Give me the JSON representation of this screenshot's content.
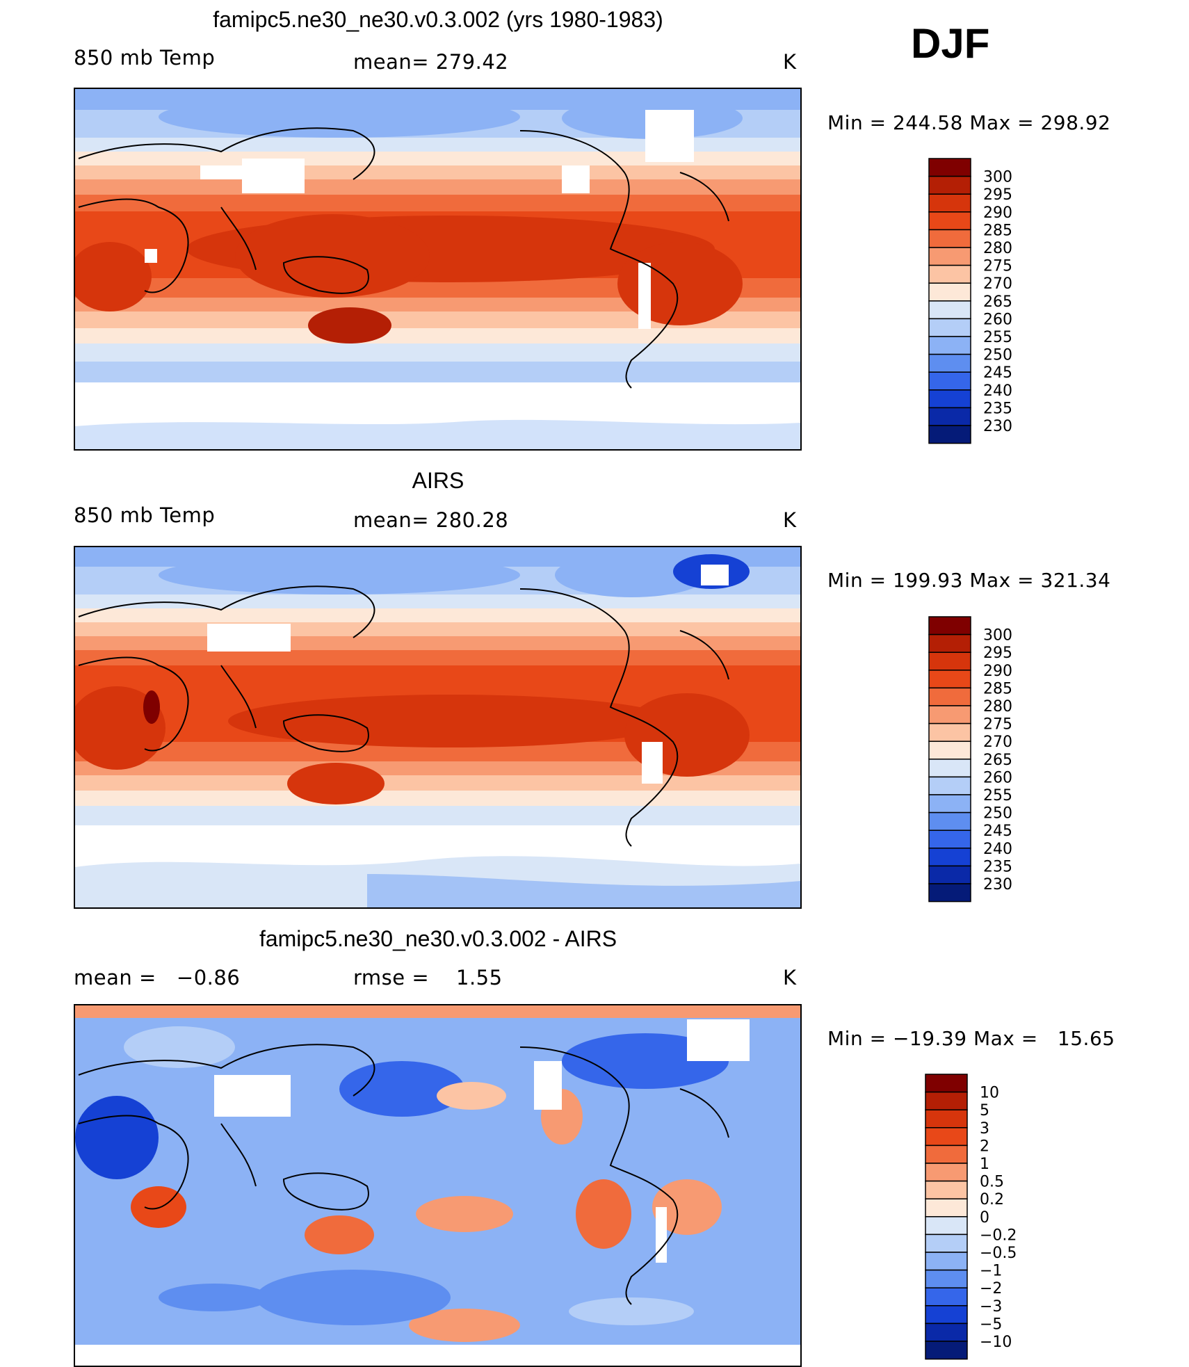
{
  "page": {
    "season": "DJF",
    "units": "K"
  },
  "chart_data": [
    {
      "type": "heatmap",
      "title": "famipc5.ne30_ne30.v0.3.002 (yrs 1980-1983)",
      "left_label": "850 mb Temp",
      "center_label": "mean= 279.42",
      "mean": 279.42,
      "units": "K",
      "min_max_label": "Min = 244.58 Max = 298.92",
      "min": 244.58,
      "max": 298.92,
      "colorbar_levels": [
        "300",
        "295",
        "290",
        "285",
        "280",
        "275",
        "270",
        "265",
        "260",
        "255",
        "250",
        "245",
        "240",
        "235",
        "230"
      ],
      "colorbar_colors": [
        "#7f0000",
        "#b41f05",
        "#d6350c",
        "#e84818",
        "#f06b3c",
        "#f79a72",
        "#fcc4a4",
        "#fde8d8",
        "#d9e6f7",
        "#b4cef7",
        "#8cb2f5",
        "#5e8ef0",
        "#3566ea",
        "#1541d4",
        "#0a29a8",
        "#051b78"
      ]
    },
    {
      "type": "heatmap",
      "title": "AIRS",
      "left_label": "850 mb Temp",
      "center_label": "mean= 280.28",
      "mean": 280.28,
      "units": "K",
      "min_max_label": "Min = 199.93 Max = 321.34",
      "min": 199.93,
      "max": 321.34,
      "colorbar_levels": [
        "300",
        "295",
        "290",
        "285",
        "280",
        "275",
        "270",
        "265",
        "260",
        "255",
        "250",
        "245",
        "240",
        "235",
        "230"
      ],
      "colorbar_colors": [
        "#7f0000",
        "#b41f05",
        "#d6350c",
        "#e84818",
        "#f06b3c",
        "#f79a72",
        "#fcc4a4",
        "#fde8d8",
        "#d9e6f7",
        "#b4cef7",
        "#8cb2f5",
        "#5e8ef0",
        "#3566ea",
        "#1541d4",
        "#0a29a8",
        "#051b78"
      ]
    },
    {
      "type": "heatmap",
      "title": "famipc5.ne30_ne30.v0.3.002 - AIRS",
      "left_label": "mean =   −0.86",
      "center_label": "rmse =    1.55",
      "mean": -0.86,
      "rmse": 1.55,
      "units": "K",
      "min_max_label": "Min = −19.39 Max =   15.65",
      "min": -19.39,
      "max": 15.65,
      "colorbar_levels": [
        "10",
        "5",
        "3",
        "2",
        "1",
        "0.5",
        "0.2",
        "0",
        "−0.2",
        "−0.5",
        "−1",
        "−2",
        "−3",
        "−5",
        "−10"
      ],
      "colorbar_colors": [
        "#7f0000",
        "#b41f05",
        "#d6350c",
        "#e84818",
        "#f06b3c",
        "#f79a72",
        "#fcc4a4",
        "#fde8d8",
        "#d9e6f7",
        "#b4cef7",
        "#8cb2f5",
        "#5e8ef0",
        "#3566ea",
        "#1541d4",
        "#0a29a8",
        "#051b78"
      ]
    }
  ]
}
